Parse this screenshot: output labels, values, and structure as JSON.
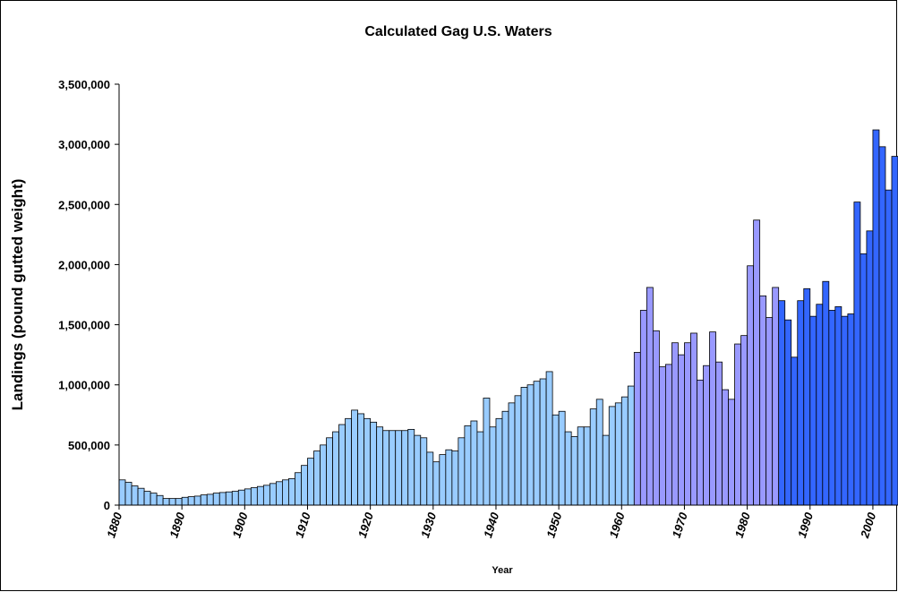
{
  "chart_data": {
    "type": "bar",
    "title": "Calculated Gag U.S. Waters",
    "x_label": "Year",
    "y_label": "Landings (pound gutted weight)",
    "xlim": [
      1879.5,
      2003.5
    ],
    "xticks": [
      1880,
      1890,
      1900,
      1910,
      1920,
      1930,
      1940,
      1950,
      1960,
      1970,
      1980,
      1990,
      2000
    ],
    "ylim": [
      0,
      3500000
    ],
    "yticks": [
      0,
      {
        "value": 500000,
        "label": "500,000"
      },
      {
        "value": 1000000,
        "label": "1,000,000"
      },
      {
        "value": 1500000,
        "label": "1,500,000"
      },
      {
        "value": 2000000,
        "label": "2,000,000"
      },
      {
        "value": 2500000,
        "label": "2,500,000"
      },
      {
        "value": 3000000,
        "label": "3,000,000"
      },
      {
        "value": 3500000,
        "label": "3,500,000"
      }
    ],
    "series": [
      {
        "color": "#99ccff",
        "x": [
          1880,
          1881,
          1882,
          1883,
          1884,
          1885,
          1886,
          1887,
          1888,
          1889,
          1890,
          1891,
          1892,
          1893,
          1894,
          1895,
          1896,
          1897,
          1898,
          1899,
          1900,
          1901,
          1902,
          1903,
          1904,
          1905,
          1906,
          1907,
          1908,
          1909,
          1910,
          1911,
          1912,
          1913,
          1914,
          1915,
          1916,
          1917,
          1918,
          1919,
          1920,
          1921,
          1922,
          1923,
          1924,
          1925,
          1926,
          1927,
          1928,
          1929,
          1930,
          1931,
          1932,
          1933,
          1934,
          1935,
          1936,
          1937,
          1938,
          1939,
          1940,
          1941,
          1942,
          1943,
          1944,
          1945,
          1946,
          1947,
          1948,
          1949,
          1950,
          1951,
          1952,
          1953,
          1954,
          1955,
          1956,
          1957,
          1958,
          1959,
          1960,
          1961
        ],
        "values": [
          210000,
          190000,
          160000,
          140000,
          115000,
          100000,
          80000,
          55000,
          55000,
          55000,
          65000,
          70000,
          75000,
          85000,
          90000,
          100000,
          105000,
          110000,
          115000,
          125000,
          135000,
          145000,
          155000,
          165000,
          180000,
          195000,
          210000,
          220000,
          270000,
          330000,
          390000,
          450000,
          500000,
          560000,
          610000,
          670000,
          720000,
          790000,
          760000,
          720000,
          690000,
          650000,
          620000,
          620000,
          620000,
          620000,
          630000,
          580000,
          560000,
          440000,
          360000,
          420000,
          460000,
          450000,
          560000,
          660000,
          700000,
          610000,
          890000,
          650000,
          720000,
          780000,
          850000,
          910000,
          980000,
          1000000,
          1030000,
          1050000,
          1110000,
          750000,
          780000,
          610000,
          570000,
          650000,
          650000,
          800000,
          880000,
          580000,
          820000,
          850000,
          900000,
          990000
        ]
      },
      {
        "color": "#9999ff",
        "x": [
          1962,
          1963,
          1964,
          1965,
          1966,
          1967,
          1968,
          1969,
          1970,
          1971,
          1972,
          1973,
          1974,
          1975,
          1976,
          1977,
          1978,
          1979,
          1980,
          1981,
          1982,
          1983,
          1984
        ],
        "values": [
          1270000,
          1620000,
          1810000,
          1450000,
          1150000,
          1170000,
          1350000,
          1250000,
          1350000,
          1430000,
          1040000,
          1160000,
          1440000,
          1190000,
          960000,
          880000,
          1340000,
          1410000,
          1990000,
          2370000,
          1740000,
          1560000,
          1810000
        ]
      },
      {
        "color": "#3366ff",
        "x": [
          1985,
          1986,
          1987,
          1988,
          1989,
          1990,
          1991,
          1992,
          1993,
          1994,
          1995,
          1996,
          1997,
          1998,
          1999,
          2000,
          2001,
          2002,
          2003
        ],
        "values": [
          1700000,
          1540000,
          1230000,
          1700000,
          1800000,
          1570000,
          1670000,
          1860000,
          1620000,
          1650000,
          1570000,
          1590000,
          2520000,
          2090000,
          2280000,
          3120000,
          2980000,
          2620000,
          2900000
        ]
      }
    ]
  }
}
